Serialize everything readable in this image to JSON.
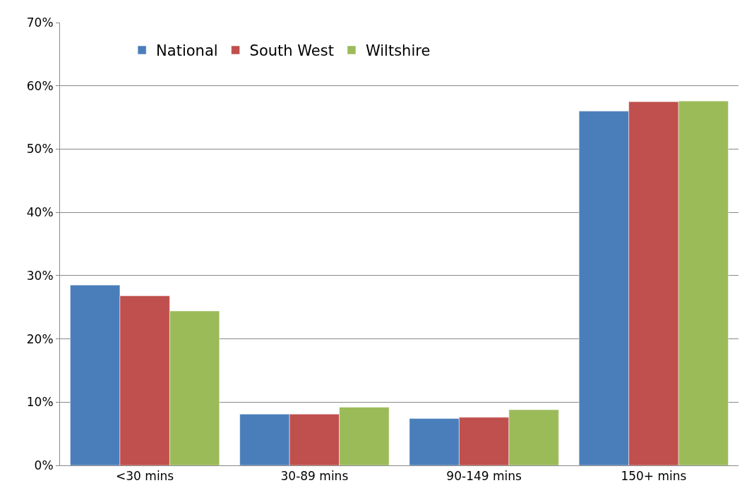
{
  "chart_data": {
    "type": "bar",
    "categories": [
      "<30 mins",
      "30-89 mins",
      "90-149 mins",
      "150+ mins"
    ],
    "series": [
      {
        "name": "National",
        "color": "#4a7ebb",
        "values": [
          28.5,
          8.1,
          7.4,
          56.0
        ]
      },
      {
        "name": "South West",
        "color": "#c0504d",
        "values": [
          26.8,
          8.1,
          7.6,
          57.5
        ]
      },
      {
        "name": "Wiltshire",
        "color": "#9bbb59",
        "values": [
          24.4,
          9.2,
          8.8,
          57.6
        ]
      }
    ],
    "ylim": [
      0,
      70
    ],
    "yticks": [
      {
        "value": 0,
        "label": "0%"
      },
      {
        "value": 10,
        "label": "10%"
      },
      {
        "value": 20,
        "label": "20%"
      },
      {
        "value": 30,
        "label": "30%"
      },
      {
        "value": 40,
        "label": "40%"
      },
      {
        "value": 50,
        "label": "50%"
      },
      {
        "value": 60,
        "label": "60%"
      },
      {
        "value": 70,
        "label": "70%"
      }
    ],
    "grid": "y",
    "legend": "top left"
  }
}
